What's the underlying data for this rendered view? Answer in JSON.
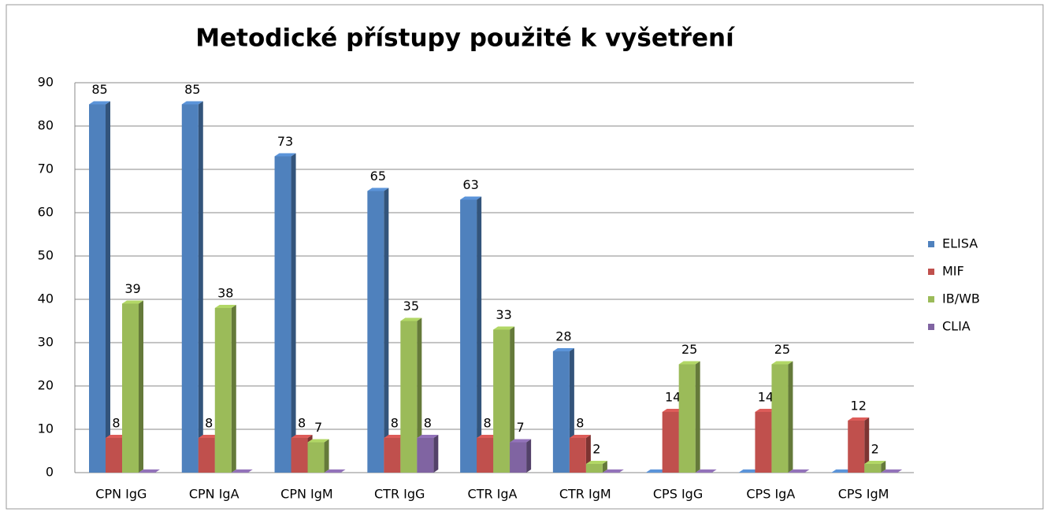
{
  "chart_data": {
    "type": "bar",
    "title": "Metodické přístupy použité k vyšetření",
    "categories": [
      "CPN IgG",
      "CPN IgA",
      "CPN IgM",
      "CTR IgG",
      "CTR IgA",
      "CTR IgM",
      "CPS IgG",
      "CPS IgA",
      "CPS IgM"
    ],
    "series": [
      {
        "name": "ELISA",
        "color": "#4f81bd",
        "values": [
          85,
          85,
          73,
          65,
          63,
          28,
          0,
          0,
          0
        ]
      },
      {
        "name": "MIF",
        "color": "#c0504d",
        "values": [
          8,
          8,
          8,
          8,
          8,
          8,
          14,
          14,
          12
        ]
      },
      {
        "name": "IB/WB",
        "color": "#9bbb59",
        "values": [
          39,
          38,
          7,
          35,
          33,
          2,
          25,
          25,
          2
        ]
      },
      {
        "name": "CLIA",
        "color": "#8064a2",
        "values": [
          0,
          0,
          0,
          8,
          7,
          0,
          0,
          0,
          0
        ]
      }
    ],
    "ylim": [
      0,
      90
    ],
    "yticks": [
      0,
      10,
      20,
      30,
      40,
      50,
      60,
      70,
      80,
      90
    ],
    "grid": true,
    "legend": "right"
  }
}
